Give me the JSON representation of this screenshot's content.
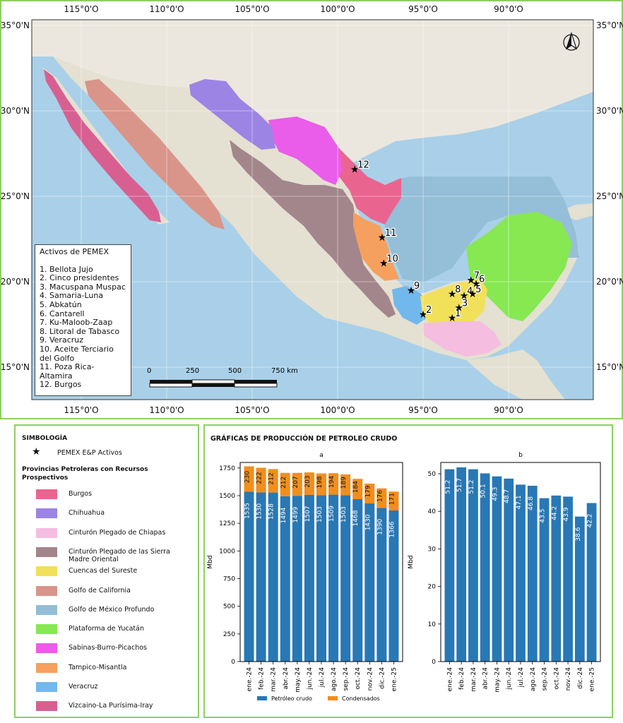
{
  "map": {
    "lon_labels": [
      "115°0'O",
      "110°0'O",
      "105°0'O",
      "100°0'O",
      "95°0'O",
      "90°0'O"
    ],
    "lat_labels": [
      "35°0'N",
      "30°0'N",
      "25°0'N",
      "20°0'N",
      "15°0'N"
    ],
    "assets_title": "Activos de PEMEX",
    "assets": [
      "1. Bellota Jujo",
      "2. Cinco presidentes",
      "3. Macuspana Muspac",
      "4. Samaria-Luna",
      "5. Abkatún",
      "6. Cantarell",
      "7. Ku-Maloob-Zaap",
      "8. Litoral de Tabasco",
      "9. Veracruz",
      "10. Aceite Terciario del Golfo",
      "11. Poza Rica-Altamira",
      "12. Burgos"
    ],
    "scale_labels": [
      "0",
      "250",
      "500",
      "750 km"
    ],
    "markers": [
      {
        "num": "1",
        "lon": -93.3,
        "lat": 17.9
      },
      {
        "num": "2",
        "lon": -95.0,
        "lat": 18.1
      },
      {
        "num": "3",
        "lon": -92.9,
        "lat": 18.5
      },
      {
        "num": "4",
        "lon": -92.6,
        "lat": 19.2
      },
      {
        "num": "5",
        "lon": -92.1,
        "lat": 19.3
      },
      {
        "num": "6",
        "lon": -91.9,
        "lat": 19.9
      },
      {
        "num": "7",
        "lon": -92.2,
        "lat": 20.1
      },
      {
        "num": "8",
        "lon": -93.3,
        "lat": 19.3
      },
      {
        "num": "9",
        "lon": -95.7,
        "lat": 19.5
      },
      {
        "num": "10",
        "lon": -97.3,
        "lat": 21.1
      },
      {
        "num": "11",
        "lon": -97.4,
        "lat": 22.6
      },
      {
        "num": "12",
        "lon": -99.0,
        "lat": 26.6
      }
    ],
    "colors": {
      "sea": "#a9d0e8",
      "land": "#ece7de"
    }
  },
  "legend": {
    "title": "SIMBOLOGÍA",
    "marker_label": "PEMEX E&P Activos",
    "provinces_title": "Provincias Petroleras con Recursos Prospectivos",
    "provinces": [
      {
        "name": "Burgos",
        "color": "#ea6490"
      },
      {
        "name": "Chihuahua",
        "color": "#9b84e4"
      },
      {
        "name": "Cinturón Plegado de Chiapas",
        "color": "#f5bde0"
      },
      {
        "name": "Cinturón Plegado de las Sierra Madre Oriental",
        "color": "#a2868b"
      },
      {
        "name": "Cuencas del Sureste",
        "color": "#f1e05a"
      },
      {
        "name": "Golfo de California",
        "color": "#d9958a"
      },
      {
        "name": "Golfo de México Profundo",
        "color": "#93bdd7"
      },
      {
        "name": "Plataforma de Yucatán",
        "color": "#87e852"
      },
      {
        "name": "Sabinas-Burro-Picachos",
        "color": "#ea5cea"
      },
      {
        "name": "Tampico-Misantla",
        "color": "#f5a05e"
      },
      {
        "name": "Veracruz",
        "color": "#71b8ec"
      },
      {
        "name": "Vizcaino-La Purísima-Iray",
        "color": "#d76091"
      }
    ]
  },
  "charts_title": "GRÁFICAS DE PRODUCCIÓN DE PETROLEO CRUDO",
  "chart_data": [
    {
      "type": "bar",
      "title": "a",
      "ylabel": "Mbd",
      "ylim": [
        0,
        1800
      ],
      "yticks": [
        0,
        250,
        500,
        750,
        1000,
        1250,
        1500,
        1750
      ],
      "categories": [
        "ene.-24",
        "feb.-24",
        "mar.-24",
        "abr.-24",
        "may.-24",
        "jun.-24",
        "jul.-24",
        "ago.-24",
        "sep.-24",
        "oct.-24",
        "nov.-24",
        "dic.-24",
        "ene.-25"
      ],
      "series": [
        {
          "name": "Petróleo crudo",
          "color": "#2878b5",
          "values": [
            1535,
            1530,
            1528,
            1494,
            1499,
            1507,
            1503,
            1509,
            1503,
            1468,
            1430,
            1390,
            1366
          ]
        },
        {
          "name": "Condensados",
          "color": "#f28e1c",
          "values": [
            230,
            222,
            212,
            212,
            207,
            203,
            198,
            194,
            189,
            184,
            179,
            176,
            171
          ]
        }
      ],
      "stacked": true,
      "legend": "bottom"
    },
    {
      "type": "bar",
      "title": "b",
      "ylabel": "Mbd",
      "ylim": [
        0,
        53
      ],
      "yticks": [
        0,
        10,
        20,
        30,
        40,
        50
      ],
      "categories": [
        "ene.-24",
        "feb.-24",
        "mar.-24",
        "abr.-24",
        "may.-24",
        "jun.-24",
        "jul.-24",
        "ago.-24",
        "sep.-24",
        "oct.-24",
        "nov.-24",
        "dic.-24",
        "ene.-25"
      ],
      "series": [
        {
          "name": "",
          "color": "#2878b5",
          "values": [
            51.2,
            51.7,
            51.2,
            50.1,
            49.3,
            48.7,
            47.1,
            46.8,
            43.5,
            44.2,
            43.9,
            38.6,
            42.2
          ]
        }
      ]
    }
  ]
}
